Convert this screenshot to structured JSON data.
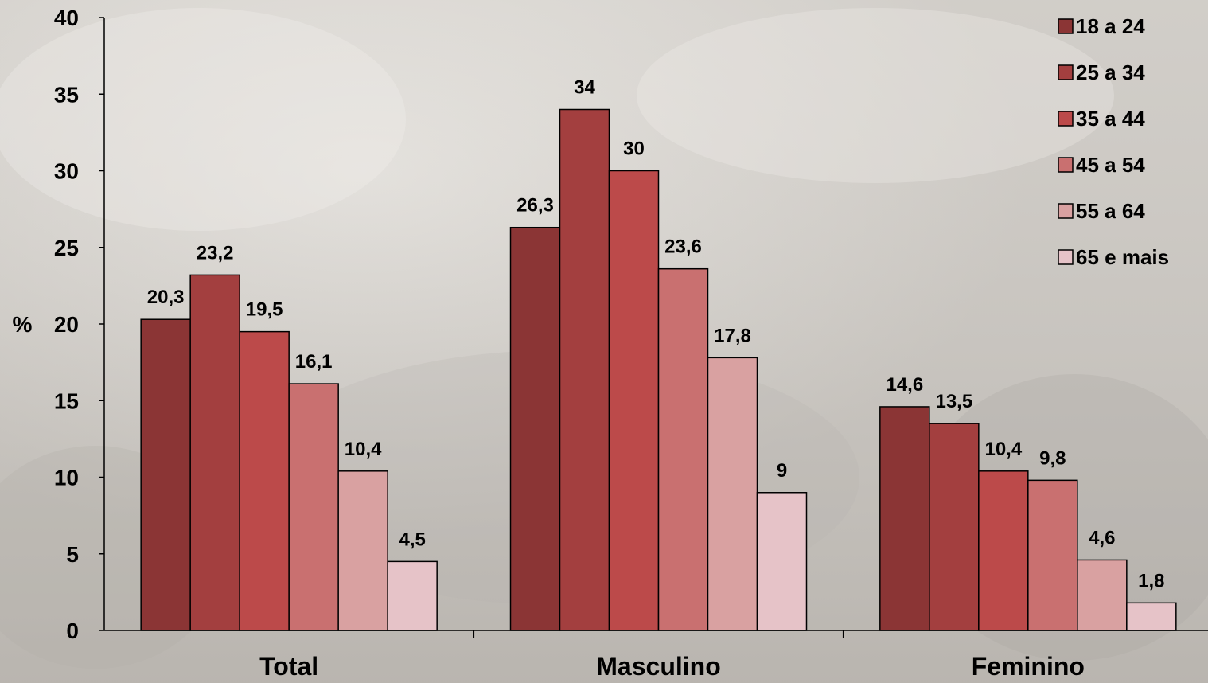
{
  "chart_data": {
    "type": "bar",
    "categories": [
      "Total",
      "Masculino",
      "Feminino"
    ],
    "series": [
      {
        "name": "18 a 24",
        "values": [
          20.3,
          26.3,
          14.6
        ],
        "labels": [
          "20,3",
          "26,3",
          "14,6"
        ],
        "color": "#8b3535"
      },
      {
        "name": "25 a 34",
        "values": [
          23.2,
          34,
          13.5
        ],
        "labels": [
          "23,2",
          "34",
          "13,5"
        ],
        "color": "#a33f3f"
      },
      {
        "name": "35 a 44",
        "values": [
          19.5,
          30,
          10.4
        ],
        "labels": [
          "19,5",
          "30",
          "10,4"
        ],
        "color": "#bc4a4a"
      },
      {
        "name": "45 a 54",
        "values": [
          16.1,
          23.6,
          9.8
        ],
        "labels": [
          "16,1",
          "23,6",
          "9,8"
        ],
        "color": "#c97070"
      },
      {
        "name": "55 a 64",
        "values": [
          10.4,
          17.8,
          4.6
        ],
        "labels": [
          "10,4",
          "17,8",
          "4,6"
        ],
        "color": "#d9a1a1"
      },
      {
        "name": "65 e mais",
        "values": [
          4.5,
          9,
          1.8
        ],
        "labels": [
          "4,5",
          "9",
          "1,8"
        ],
        "color": "#e6c3c8"
      }
    ],
    "ylabel": "%",
    "ylim": [
      0,
      40
    ],
    "yticks": [
      0,
      5,
      10,
      15,
      20,
      25,
      30,
      35,
      40
    ],
    "grid": false,
    "legend": "top-right"
  }
}
